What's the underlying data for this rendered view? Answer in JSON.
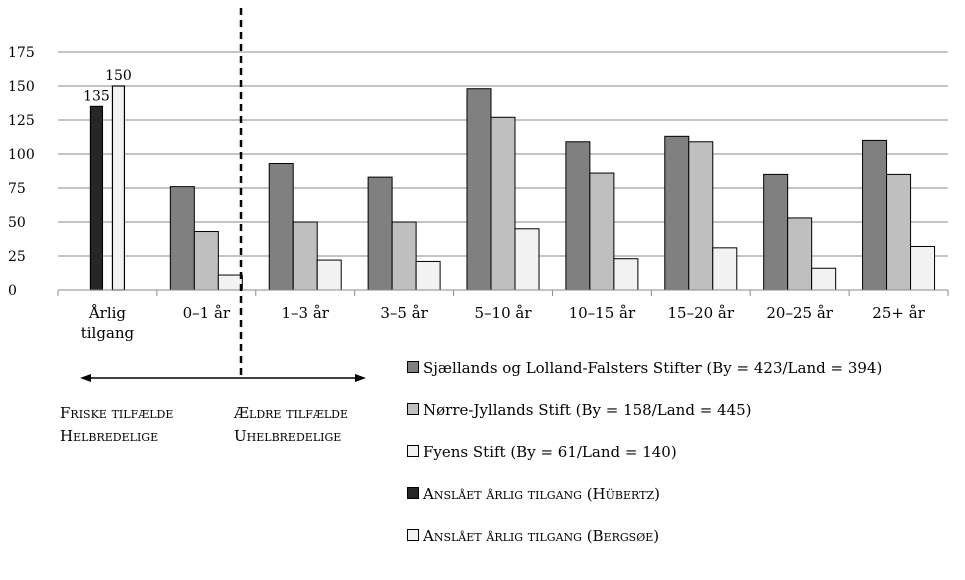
{
  "chart_data": {
    "type": "bar",
    "ylim": [
      0,
      175
    ],
    "yticks": [
      "0",
      "25",
      "50",
      "75",
      "100",
      "125",
      "150",
      "175"
    ],
    "grid": true,
    "legend_position": "bottom-right",
    "categories": [
      {
        "label_lines": [
          "Årlig",
          "tilgang"
        ]
      },
      {
        "label_lines": [
          "0–1 år"
        ]
      },
      {
        "label_lines": [
          "1–3 år"
        ]
      },
      {
        "label_lines": [
          "3–5 år"
        ]
      },
      {
        "label_lines": [
          "5–10 år"
        ]
      },
      {
        "label_lines": [
          "10–15 år"
        ]
      },
      {
        "label_lines": [
          "15–20 år"
        ]
      },
      {
        "label_lines": [
          "20–25 år"
        ]
      },
      {
        "label_lines": [
          "25+ år"
        ]
      }
    ],
    "series": [
      {
        "name": "Sjællands og Lolland-Falsters Stifter  (By = 423/Land = 394)",
        "small_caps": false,
        "color": "#808080",
        "values": [
          null,
          76,
          93,
          83,
          148,
          109,
          113,
          85,
          110
        ]
      },
      {
        "name": "Nørre-Jyllands Stift  (By = 158/Land = 445)",
        "small_caps": false,
        "color": "#bfbfbf",
        "values": [
          null,
          43,
          50,
          50,
          127,
          86,
          109,
          53,
          85
        ]
      },
      {
        "name": "Fyens Stift  (By = 61/Land = 140)",
        "small_caps": false,
        "color": "#f2f2f2",
        "values": [
          null,
          11,
          22,
          21,
          45,
          23,
          31,
          16,
          32
        ]
      },
      {
        "name": "Anslået årlig tilgang (Hübertz)",
        "small_caps": true,
        "color": "#262626",
        "values": [
          135,
          null,
          null,
          null,
          null,
          null,
          null,
          null,
          null
        ],
        "data_label": "135"
      },
      {
        "name": "Anslået årlig tilgang (Bergsøe)",
        "small_caps": true,
        "color": "#f2f2f2",
        "values": [
          150,
          null,
          null,
          null,
          null,
          null,
          null,
          null,
          null
        ],
        "data_label": "150"
      }
    ]
  },
  "annotations": {
    "left_lines": [
      "Friske tilfælde",
      "Helbredelige"
    ],
    "right_lines": [
      "Ældre tilfælde",
      "Uhelbredelige"
    ]
  }
}
